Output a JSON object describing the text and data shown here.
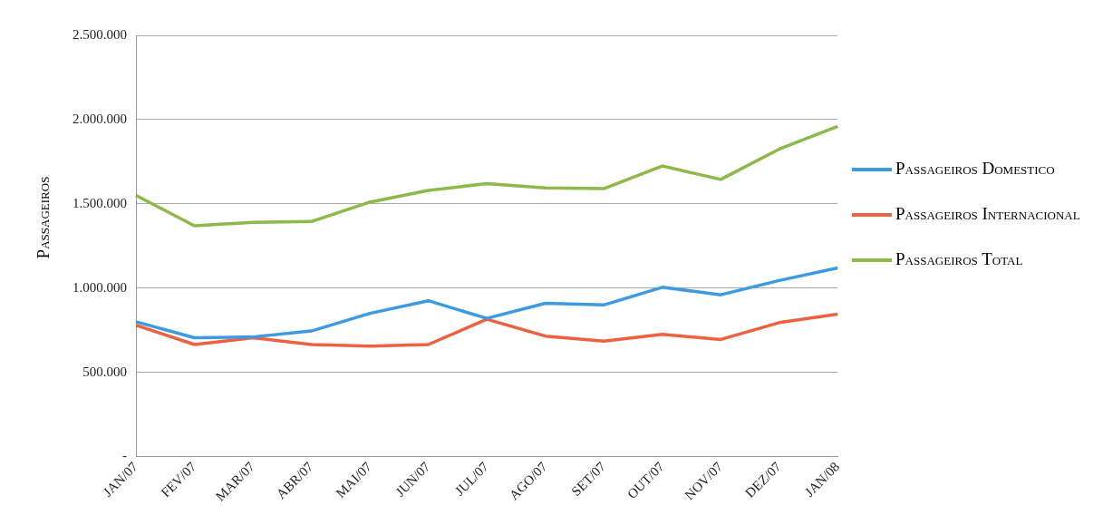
{
  "chart_data": {
    "type": "line",
    "ylabel": "Passageiros",
    "categories": [
      "JAN/07",
      "FEV/07",
      "MAR/07",
      "ABR/07",
      "MAI/07",
      "JUN/07",
      "JUL/07",
      "AGO/07",
      "SET/07",
      "OUT/07",
      "NOV/07",
      "DEZ/07",
      "JAN/08"
    ],
    "series": [
      {
        "name": "Passageiros Domestico",
        "color": "#3e9ae0",
        "values": [
          800000,
          705000,
          710000,
          745000,
          850000,
          925000,
          820000,
          910000,
          900000,
          1005000,
          960000,
          1045000,
          1120000
        ]
      },
      {
        "name": "Passageiros Internacional",
        "color": "#ee6140",
        "values": [
          780000,
          665000,
          705000,
          665000,
          655000,
          665000,
          815000,
          715000,
          685000,
          725000,
          695000,
          795000,
          845000
        ]
      },
      {
        "name": "Passageiros Total",
        "color": "#8db84a",
        "values": [
          1550000,
          1370000,
          1390000,
          1395000,
          1510000,
          1580000,
          1620000,
          1595000,
          1590000,
          1725000,
          1645000,
          1825000,
          1960000
        ]
      }
    ],
    "ylim": [
      0,
      2500000
    ],
    "yticks": [
      {
        "value": 0,
        "label": "-"
      },
      {
        "value": 500000,
        "label": "500.000"
      },
      {
        "value": 1000000,
        "label": "1.000.000"
      },
      {
        "value": 1500000,
        "label": "1.500.000"
      },
      {
        "value": 2000000,
        "label": "2.000.000"
      },
      {
        "value": 2500000,
        "label": "2.500.000"
      }
    ],
    "grid": "y",
    "legend": "right",
    "marker": "none",
    "line_style": "solid"
  }
}
